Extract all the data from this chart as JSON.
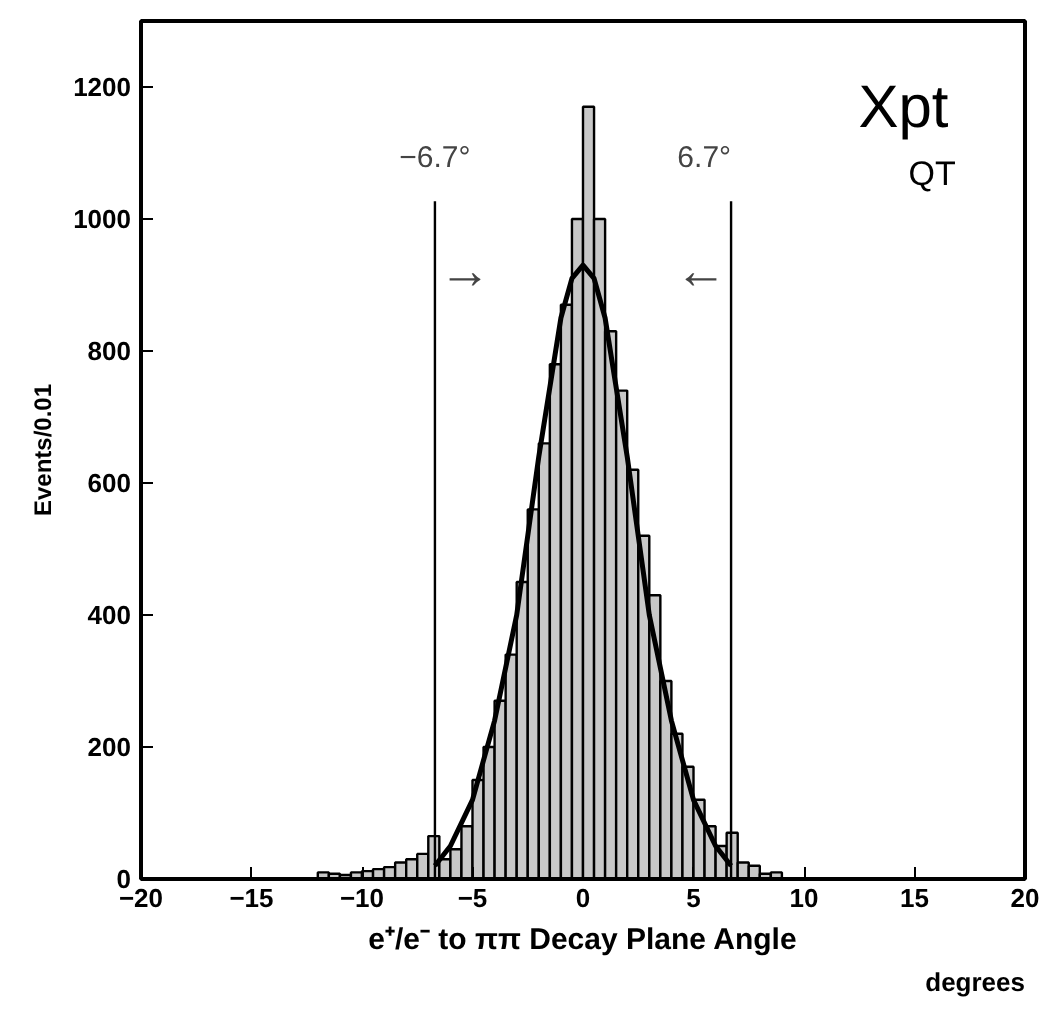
{
  "chart_data": {
    "type": "histogram",
    "ylabel": "Events/0.01",
    "xlabel": "e⁺/e⁻ to ππ Decay Plane Angle",
    "annotations": [
      "Xpt",
      "QT",
      "degrees",
      "→",
      "←"
    ],
    "bins": [
      -12,
      -11.5,
      -11,
      -10.5,
      -10,
      -9.5,
      -9,
      -8.5,
      -8,
      -7.5,
      -7,
      -6.5,
      -6,
      -5.5,
      -5,
      -4.5,
      -4,
      -3.5,
      -3,
      -2.5,
      -2,
      -1.5,
      -1,
      -0.5,
      0,
      0.5,
      1,
      1.5,
      2,
      2.5,
      3,
      3.5,
      4,
      4.5,
      5,
      5.5,
      6,
      6.5,
      7,
      7.5,
      8,
      8.5,
      9
    ],
    "series": [
      {
        "color": "#c8c8c8",
        "values": [
          10,
          8,
          6,
          10,
          12,
          15,
          18,
          25,
          30,
          38,
          65,
          30,
          45,
          80,
          150,
          200,
          270,
          340,
          450,
          560,
          660,
          780,
          870,
          1000,
          1170,
          1000,
          830,
          740,
          620,
          520,
          430,
          300,
          220,
          170,
          120,
          80,
          50,
          70,
          25,
          20,
          8,
          10
        ]
      },
      {
        "type": "line",
        "color": "#000000",
        "x": [
          -6.7,
          -6,
          -5,
          -4,
          -3,
          -2,
          -1,
          -0.5,
          0,
          0.5,
          1,
          2,
          3,
          4,
          5,
          6,
          6.7
        ],
        "values": [
          20,
          50,
          120,
          240,
          400,
          640,
          850,
          910,
          930,
          910,
          850,
          640,
          400,
          240,
          120,
          50,
          20
        ]
      }
    ],
    "ref_lines": [
      {
        "axis": "x",
        "value": -6.7,
        "label": "−6.7°",
        "color": "#000000"
      },
      {
        "axis": "x",
        "value": 6.7,
        "label": "6.7°",
        "color": "#000000"
      }
    ],
    "xlim": [
      -20,
      20
    ],
    "ylim": [
      0,
      1300
    ],
    "xticks": [
      -20,
      -15,
      -10,
      -5,
      0,
      5,
      10,
      15,
      20
    ],
    "yticks": [
      0,
      200,
      400,
      600,
      800,
      1000,
      1200
    ],
    "grid": false
  }
}
